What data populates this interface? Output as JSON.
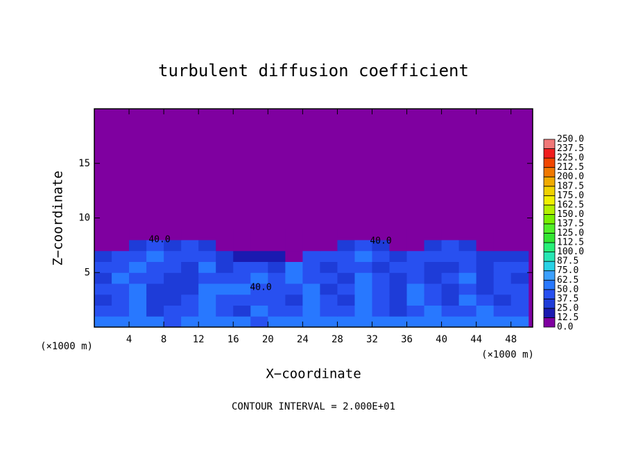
{
  "chart_data": {
    "type": "contour",
    "title": "turbulent diffusion coefficient",
    "x_label": "X−coordinate",
    "y_label": "Z−coordinate",
    "x_unit": "(×1000 m)",
    "footer": "CONTOUR INTERVAL = 2.000E+01",
    "annotations": [
      "40.0",
      "40.0",
      "40.0"
    ],
    "xlim": [
      0,
      50.5
    ],
    "ylim": [
      0,
      20
    ],
    "xticks": [
      4,
      8,
      12,
      16,
      20,
      24,
      28,
      32,
      36,
      40,
      44,
      48
    ],
    "yticks": [
      5,
      10,
      15
    ],
    "x": [
      1,
      3,
      5,
      7,
      9,
      11,
      13,
      15,
      17,
      19,
      21,
      23,
      25,
      27,
      29,
      31,
      33,
      35,
      37,
      39,
      41,
      43,
      45,
      47,
      49
    ],
    "y": [
      0.5,
      1.5,
      2.5,
      3.5,
      4.5,
      5.5,
      6.5,
      7.5,
      8.5
    ],
    "z": [
      [
        62,
        55,
        50,
        60,
        45,
        50,
        55,
        62,
        50,
        45,
        55,
        60,
        55,
        50,
        62,
        55,
        60,
        50,
        55,
        62,
        50,
        55,
        60,
        50,
        55
      ],
      [
        40,
        45,
        50,
        35,
        40,
        45,
        55,
        40,
        35,
        50,
        45,
        40,
        55,
        45,
        40,
        50,
        45,
        35,
        45,
        50,
        40,
        45,
        50,
        40,
        45
      ],
      [
        35,
        40,
        55,
        30,
        35,
        40,
        50,
        45,
        40,
        45,
        40,
        35,
        50,
        40,
        35,
        55,
        40,
        30,
        55,
        40,
        35,
        50,
        40,
        35,
        40
      ],
      [
        40,
        45,
        50,
        35,
        30,
        35,
        50,
        55,
        50,
        45,
        40,
        45,
        55,
        35,
        40,
        50,
        40,
        35,
        50,
        40,
        35,
        45,
        35,
        40,
        45
      ],
      [
        35,
        50,
        45,
        40,
        30,
        35,
        45,
        40,
        45,
        50,
        40,
        50,
        45,
        40,
        35,
        55,
        40,
        35,
        45,
        35,
        40,
        50,
        35,
        40,
        35
      ],
      [
        40,
        45,
        50,
        45,
        40,
        35,
        50,
        35,
        40,
        40,
        35,
        50,
        45,
        35,
        40,
        45,
        35,
        40,
        40,
        30,
        35,
        45,
        30,
        40,
        40
      ],
      [
        30,
        40,
        45,
        50,
        40,
        40,
        45,
        30,
        20,
        20,
        15,
        10,
        40,
        45,
        40,
        50,
        45,
        30,
        40,
        40,
        45,
        40,
        35,
        30,
        25
      ],
      [
        0,
        10,
        30,
        40,
        35,
        40,
        30,
        10,
        0,
        0,
        0,
        0,
        0,
        10,
        35,
        40,
        30,
        0,
        10,
        35,
        40,
        25,
        10,
        0,
        0
      ],
      [
        0,
        0,
        0,
        5,
        10,
        5,
        0,
        0,
        0,
        0,
        0,
        0,
        0,
        0,
        5,
        10,
        0,
        0,
        0,
        10,
        5,
        0,
        0,
        0,
        0
      ]
    ],
    "levels": [
      {
        "value": 0,
        "label": "0.0"
      },
      {
        "value": 12.5,
        "label": "12.5"
      },
      {
        "value": 25,
        "label": "25.0"
      },
      {
        "value": 37.5,
        "label": "37.5"
      },
      {
        "value": 50,
        "label": "50.0"
      },
      {
        "value": 62.5,
        "label": "62.5"
      },
      {
        "value": 75,
        "label": "75.0"
      },
      {
        "value": 87.5,
        "label": "87.5"
      },
      {
        "value": 100,
        "label": "100.0"
      },
      {
        "value": 112.5,
        "label": "112.5"
      },
      {
        "value": 125,
        "label": "125.0"
      },
      {
        "value": 137.5,
        "label": "137.5"
      },
      {
        "value": 150,
        "label": "150.0"
      },
      {
        "value": 162.5,
        "label": "162.5"
      },
      {
        "value": 175,
        "label": "175.0"
      },
      {
        "value": 187.5,
        "label": "187.5"
      },
      {
        "value": 200,
        "label": "200.0"
      },
      {
        "value": 212.5,
        "label": "212.5"
      },
      {
        "value": 225,
        "label": "225.0"
      },
      {
        "value": 237.5,
        "label": "237.5"
      },
      {
        "value": 250,
        "label": "250.0"
      }
    ],
    "colors": [
      "#7f00a0",
      "#1a1ab0",
      "#1e3cd8",
      "#2850f0",
      "#2878ff",
      "#3ca0ff",
      "#28d2e6",
      "#28e6b4",
      "#28f078",
      "#32e632",
      "#50f028",
      "#78f000",
      "#b4f000",
      "#f0f000",
      "#f0d200",
      "#f0aa00",
      "#f07800",
      "#f04600",
      "#f01e1e",
      "#f07878"
    ]
  }
}
